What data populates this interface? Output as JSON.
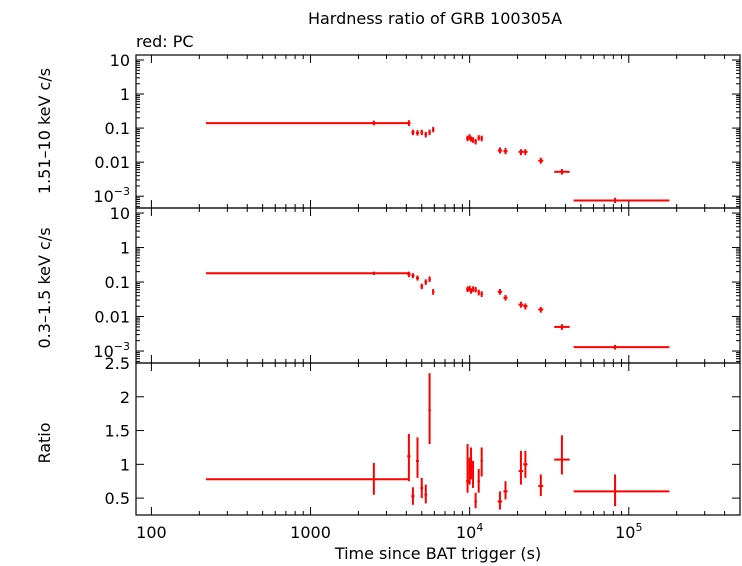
{
  "title": "Hardness ratio of GRB 100305A",
  "subtitle": "red: PC",
  "xlabel": "Time since BAT trigger (s)",
  "colors": {
    "series": "#ff0000",
    "axis": "#000000",
    "background": "#ffffff"
  },
  "chart_data": {
    "type": "scatter",
    "x_scale": "log",
    "xlim": [
      80,
      500000
    ],
    "x_ticks": [
      {
        "value": 100,
        "label": "100"
      },
      {
        "value": 1000,
        "label": "1000"
      },
      {
        "value": 10000,
        "base": "10",
        "exp": "4"
      },
      {
        "value": 100000,
        "base": "10",
        "exp": "5"
      }
    ],
    "panels": [
      {
        "name": "hard",
        "ylabel": "1.51–10 keV c/s",
        "y_scale": "log",
        "ylim": [
          0.00045,
          14
        ],
        "y_ticks": [
          {
            "value": 10,
            "label": "10"
          },
          {
            "value": 1,
            "label": "1"
          },
          {
            "value": 0.1,
            "label": "0.1"
          },
          {
            "value": 0.01,
            "label": "0.01"
          },
          {
            "value": 0.001,
            "base": "10",
            "exp": "−3"
          }
        ],
        "points": [
          {
            "x": 2500,
            "xlo": 220,
            "xhi": 4100,
            "y": 0.14,
            "ylo": 0.12,
            "yhi": 0.165
          },
          {
            "x": 4150,
            "xlo": 4050,
            "xhi": 4250,
            "y": 0.14,
            "ylo": 0.115,
            "yhi": 0.17
          },
          {
            "x": 4400,
            "xlo": 4300,
            "xhi": 4500,
            "y": 0.075,
            "ylo": 0.062,
            "yhi": 0.09
          },
          {
            "x": 4700,
            "xlo": 4600,
            "xhi": 4800,
            "y": 0.072,
            "ylo": 0.06,
            "yhi": 0.087
          },
          {
            "x": 5000,
            "xlo": 4900,
            "xhi": 5100,
            "y": 0.075,
            "ylo": 0.062,
            "yhi": 0.09
          },
          {
            "x": 5300,
            "xlo": 5200,
            "xhi": 5400,
            "y": 0.065,
            "ylo": 0.053,
            "yhi": 0.078
          },
          {
            "x": 5600,
            "xlo": 5500,
            "xhi": 5700,
            "y": 0.075,
            "ylo": 0.062,
            "yhi": 0.09
          },
          {
            "x": 5900,
            "xlo": 5800,
            "xhi": 6000,
            "y": 0.09,
            "ylo": 0.075,
            "yhi": 0.108
          },
          {
            "x": 9700,
            "xlo": 9500,
            "xhi": 9900,
            "y": 0.05,
            "ylo": 0.041,
            "yhi": 0.06
          },
          {
            "x": 10000,
            "xlo": 9900,
            "xhi": 10100,
            "y": 0.055,
            "ylo": 0.045,
            "yhi": 0.066
          },
          {
            "x": 10200,
            "xlo": 10100,
            "xhi": 10300,
            "y": 0.048,
            "ylo": 0.04,
            "yhi": 0.057
          },
          {
            "x": 10500,
            "xlo": 10400,
            "xhi": 10600,
            "y": 0.045,
            "ylo": 0.037,
            "yhi": 0.054
          },
          {
            "x": 10900,
            "xlo": 10700,
            "xhi": 11100,
            "y": 0.04,
            "ylo": 0.033,
            "yhi": 0.048
          },
          {
            "x": 11400,
            "xlo": 11200,
            "xhi": 11600,
            "y": 0.052,
            "ylo": 0.043,
            "yhi": 0.062
          },
          {
            "x": 11900,
            "xlo": 11700,
            "xhi": 12100,
            "y": 0.05,
            "ylo": 0.041,
            "yhi": 0.06
          },
          {
            "x": 15500,
            "xlo": 15000,
            "xhi": 16000,
            "y": 0.022,
            "ylo": 0.018,
            "yhi": 0.027
          },
          {
            "x": 16800,
            "xlo": 16300,
            "xhi": 17300,
            "y": 0.021,
            "ylo": 0.017,
            "yhi": 0.026
          },
          {
            "x": 21000,
            "xlo": 20300,
            "xhi": 21700,
            "y": 0.02,
            "ylo": 0.016,
            "yhi": 0.024
          },
          {
            "x": 22400,
            "xlo": 21700,
            "xhi": 23100,
            "y": 0.02,
            "ylo": 0.016,
            "yhi": 0.024
          },
          {
            "x": 28000,
            "xlo": 27000,
            "xhi": 29000,
            "y": 0.011,
            "ylo": 0.009,
            "yhi": 0.0135
          },
          {
            "x": 38000,
            "xlo": 34000,
            "xhi": 42500,
            "y": 0.0052,
            "ylo": 0.0043,
            "yhi": 0.0063
          },
          {
            "x": 82000,
            "xlo": 45000,
            "xhi": 180000,
            "y": 0.00075,
            "ylo": 0.00063,
            "yhi": 0.0009
          }
        ]
      },
      {
        "name": "soft",
        "ylabel": "0.3–1.5 keV c/s",
        "y_scale": "log",
        "ylim": [
          0.00045,
          14
        ],
        "y_ticks": [
          {
            "value": 10,
            "label": "10"
          },
          {
            "value": 1,
            "label": "1"
          },
          {
            "value": 0.1,
            "label": "0.1"
          },
          {
            "value": 0.01,
            "label": "0.01"
          },
          {
            "value": 0.001,
            "base": "10",
            "exp": "−3"
          }
        ],
        "points": [
          {
            "x": 2500,
            "xlo": 220,
            "xhi": 4100,
            "y": 0.18,
            "ylo": 0.16,
            "yhi": 0.2
          },
          {
            "x": 4150,
            "xlo": 4050,
            "xhi": 4250,
            "y": 0.17,
            "ylo": 0.14,
            "yhi": 0.2
          },
          {
            "x": 4400,
            "xlo": 4300,
            "xhi": 4500,
            "y": 0.155,
            "ylo": 0.13,
            "yhi": 0.18
          },
          {
            "x": 4700,
            "xlo": 4600,
            "xhi": 4800,
            "y": 0.13,
            "ylo": 0.11,
            "yhi": 0.155
          },
          {
            "x": 5000,
            "xlo": 4900,
            "xhi": 5100,
            "y": 0.075,
            "ylo": 0.062,
            "yhi": 0.09
          },
          {
            "x": 5300,
            "xlo": 5200,
            "xhi": 5400,
            "y": 0.1,
            "ylo": 0.083,
            "yhi": 0.12
          },
          {
            "x": 5600,
            "xlo": 5500,
            "xhi": 5700,
            "y": 0.12,
            "ylo": 0.1,
            "yhi": 0.145
          },
          {
            "x": 5900,
            "xlo": 5800,
            "xhi": 6000,
            "y": 0.052,
            "ylo": 0.043,
            "yhi": 0.063
          },
          {
            "x": 9700,
            "xlo": 9500,
            "xhi": 9900,
            "y": 0.062,
            "ylo": 0.051,
            "yhi": 0.074
          },
          {
            "x": 10000,
            "xlo": 9900,
            "xhi": 10100,
            "y": 0.065,
            "ylo": 0.054,
            "yhi": 0.078
          },
          {
            "x": 10200,
            "xlo": 10100,
            "xhi": 10300,
            "y": 0.055,
            "ylo": 0.046,
            "yhi": 0.066
          },
          {
            "x": 10500,
            "xlo": 10400,
            "xhi": 10600,
            "y": 0.063,
            "ylo": 0.052,
            "yhi": 0.075
          },
          {
            "x": 10900,
            "xlo": 10700,
            "xhi": 11100,
            "y": 0.06,
            "ylo": 0.05,
            "yhi": 0.072
          },
          {
            "x": 11400,
            "xlo": 11200,
            "xhi": 11600,
            "y": 0.05,
            "ylo": 0.041,
            "yhi": 0.06
          },
          {
            "x": 11900,
            "xlo": 11700,
            "xhi": 12100,
            "y": 0.045,
            "ylo": 0.037,
            "yhi": 0.054
          },
          {
            "x": 15500,
            "xlo": 15000,
            "xhi": 16000,
            "y": 0.052,
            "ylo": 0.043,
            "yhi": 0.063
          },
          {
            "x": 16800,
            "xlo": 16300,
            "xhi": 17300,
            "y": 0.035,
            "ylo": 0.029,
            "yhi": 0.042
          },
          {
            "x": 21000,
            "xlo": 20300,
            "xhi": 21700,
            "y": 0.022,
            "ylo": 0.018,
            "yhi": 0.027
          },
          {
            "x": 22400,
            "xlo": 21700,
            "xhi": 23100,
            "y": 0.02,
            "ylo": 0.016,
            "yhi": 0.024
          },
          {
            "x": 28000,
            "xlo": 27000,
            "xhi": 29000,
            "y": 0.016,
            "ylo": 0.013,
            "yhi": 0.019
          },
          {
            "x": 38000,
            "xlo": 34000,
            "xhi": 42500,
            "y": 0.005,
            "ylo": 0.0041,
            "yhi": 0.006
          },
          {
            "x": 82000,
            "xlo": 45000,
            "xhi": 180000,
            "y": 0.0013,
            "ylo": 0.0011,
            "yhi": 0.0015
          }
        ]
      },
      {
        "name": "ratio",
        "ylabel": "Ratio",
        "y_scale": "linear",
        "ylim": [
          0.25,
          2.5
        ],
        "y_ticks": [
          {
            "value": 2.5,
            "label": "2.5"
          },
          {
            "value": 2,
            "label": "2"
          },
          {
            "value": 1.5,
            "label": "1.5"
          },
          {
            "value": 1,
            "label": "1"
          },
          {
            "value": 0.5,
            "label": "0.5"
          }
        ],
        "points": [
          {
            "x": 2500,
            "xlo": 220,
            "xhi": 4100,
            "y": 0.78,
            "ylo": 0.55,
            "yhi": 1.02
          },
          {
            "x": 4150,
            "xlo": 4050,
            "xhi": 4250,
            "y": 1.12,
            "ylo": 0.75,
            "yhi": 1.45
          },
          {
            "x": 4400,
            "xlo": 4300,
            "xhi": 4500,
            "y": 0.53,
            "ylo": 0.4,
            "yhi": 0.66
          },
          {
            "x": 4700,
            "xlo": 4600,
            "xhi": 4800,
            "y": 1.05,
            "ylo": 0.8,
            "yhi": 1.4
          },
          {
            "x": 5000,
            "xlo": 4900,
            "xhi": 5100,
            "y": 0.65,
            "ylo": 0.5,
            "yhi": 0.8
          },
          {
            "x": 5300,
            "xlo": 5200,
            "xhi": 5400,
            "y": 0.55,
            "ylo": 0.42,
            "yhi": 0.7
          },
          {
            "x": 5600,
            "xlo": 5500,
            "xhi": 5700,
            "y": 1.8,
            "ylo": 1.3,
            "yhi": 2.35
          },
          {
            "x": 9700,
            "xlo": 9500,
            "xhi": 9900,
            "y": 0.75,
            "ylo": 0.58,
            "yhi": 1.3
          },
          {
            "x": 10000,
            "xlo": 9900,
            "xhi": 10100,
            "y": 0.9,
            "ylo": 0.7,
            "yhi": 1.1
          },
          {
            "x": 10200,
            "xlo": 10100,
            "xhi": 10300,
            "y": 1.0,
            "ylo": 0.78,
            "yhi": 1.25
          },
          {
            "x": 10500,
            "xlo": 10400,
            "xhi": 10600,
            "y": 0.85,
            "ylo": 0.65,
            "yhi": 1.05
          },
          {
            "x": 10900,
            "xlo": 10700,
            "xhi": 11100,
            "y": 0.45,
            "ylo": 0.35,
            "yhi": 0.58
          },
          {
            "x": 11400,
            "xlo": 11200,
            "xhi": 11600,
            "y": 0.75,
            "ylo": 0.58,
            "yhi": 0.93
          },
          {
            "x": 11900,
            "xlo": 11700,
            "xhi": 12100,
            "y": 1.05,
            "ylo": 0.82,
            "yhi": 1.25
          },
          {
            "x": 15500,
            "xlo": 15000,
            "xhi": 16000,
            "y": 0.45,
            "ylo": 0.33,
            "yhi": 0.6
          },
          {
            "x": 16800,
            "xlo": 16300,
            "xhi": 17300,
            "y": 0.6,
            "ylo": 0.48,
            "yhi": 0.75
          },
          {
            "x": 21000,
            "xlo": 20300,
            "xhi": 21700,
            "y": 0.9,
            "ylo": 0.7,
            "yhi": 1.2
          },
          {
            "x": 22400,
            "xlo": 21700,
            "xhi": 23100,
            "y": 1.0,
            "ylo": 0.8,
            "yhi": 1.2
          },
          {
            "x": 28000,
            "xlo": 27000,
            "xhi": 29000,
            "y": 0.68,
            "ylo": 0.53,
            "yhi": 0.85
          },
          {
            "x": 38000,
            "xlo": 34000,
            "xhi": 42500,
            "y": 1.07,
            "ylo": 0.85,
            "yhi": 1.43
          },
          {
            "x": 82000,
            "xlo": 45000,
            "xhi": 180000,
            "y": 0.6,
            "ylo": 0.38,
            "yhi": 0.85
          }
        ]
      }
    ]
  }
}
